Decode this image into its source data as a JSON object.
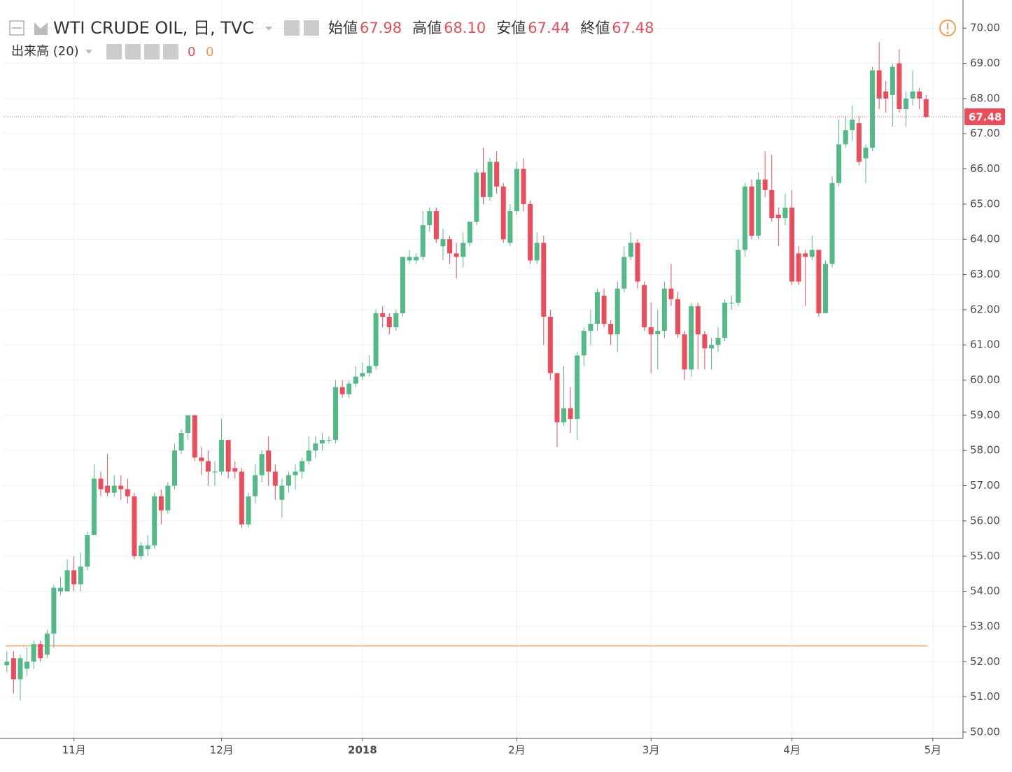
{
  "chart_data": {
    "type": "candlestick",
    "title": "WTI CRUDE OIL, 日, TVC",
    "ohlc_legend": [
      {
        "name": "始値",
        "value": 67.98
      },
      {
        "name": "高値",
        "value": 68.1,
        "label": "68.10"
      },
      {
        "name": "安値",
        "value": 67.44
      },
      {
        "name": "終値",
        "value": 67.48
      }
    ],
    "volume_legend": {
      "name": "出来高 (20)",
      "values": [
        0,
        0
      ],
      "colors": [
        "#e0505e",
        "#f39c4a"
      ]
    },
    "last_price": {
      "value": 67.48
    },
    "up_color": "#53b987",
    "down_color": "#eb4d5c",
    "ylim": [
      49.84,
      70.6
    ],
    "yticks": [
      {
        "value": 50,
        "label": "50.00"
      },
      {
        "value": 51,
        "label": "51.00"
      },
      {
        "value": 52,
        "label": "52.00"
      },
      {
        "value": 53,
        "label": "53.00"
      },
      {
        "value": 54,
        "label": "54.00"
      },
      {
        "value": 55,
        "label": "55.00"
      },
      {
        "value": 56,
        "label": "56.00"
      },
      {
        "value": 57,
        "label": "57.00"
      },
      {
        "value": 58,
        "label": "58.00"
      },
      {
        "value": 59,
        "label": "59.00"
      },
      {
        "value": 60,
        "label": "60.00"
      },
      {
        "value": 61,
        "label": "61.00"
      },
      {
        "value": 62,
        "label": "62.00"
      },
      {
        "value": 63,
        "label": "63.00"
      },
      {
        "value": 64,
        "label": "64.00"
      },
      {
        "value": 65,
        "label": "65.00"
      },
      {
        "value": 66,
        "label": "66.00"
      },
      {
        "value": 67,
        "label": "67.00"
      },
      {
        "value": 68,
        "label": "68.00"
      },
      {
        "value": 69,
        "label": "69.00"
      },
      {
        "value": 70,
        "label": "70.00"
      }
    ],
    "xlim": [
      -0.5,
      142.5
    ],
    "xticks": [
      {
        "value": 10,
        "label": "11月"
      },
      {
        "value": 32,
        "label": "12月"
      },
      {
        "value": 53,
        "label": "2018"
      },
      {
        "value": 76,
        "label": "2月"
      },
      {
        "value": 96,
        "label": "3月"
      },
      {
        "value": 117,
        "label": "4月"
      },
      {
        "value": 138,
        "label": "5月"
      }
    ],
    "grid": true,
    "open": [
      51.9,
      52.1,
      51.5,
      51.8,
      52.0,
      52.5,
      52.2,
      52.8,
      54.0,
      54.0,
      54.6,
      54.2,
      54.7,
      55.6,
      57.2,
      57.0,
      56.8,
      57.0,
      56.9,
      56.7,
      55.0,
      55.2,
      55.3,
      56.7,
      56.3,
      57.0,
      58.0,
      58.5,
      59.0,
      57.8,
      57.7,
      57.4,
      57.4,
      58.3,
      57.5,
      57.4,
      55.9,
      56.7,
      57.3,
      58.0,
      57.4,
      56.6,
      57.0,
      57.3,
      57.4,
      57.7,
      58.0,
      58.2,
      58.3,
      58.3,
      59.8,
      59.6,
      59.9,
      60.1,
      60.2,
      60.4,
      61.9,
      61.8,
      61.5,
      61.9,
      63.4,
      63.4,
      63.5,
      64.4,
      64.8,
      63.8,
      64.0,
      63.6,
      63.5,
      63.9,
      64.5,
      65.9,
      65.2,
      66.2,
      65.5,
      63.9,
      64.8,
      66.0,
      65.0,
      63.4,
      63.9,
      61.8,
      60.2,
      58.8,
      59.2,
      58.9,
      60.7,
      61.4,
      61.6,
      62.4,
      61.6,
      61.3,
      62.6,
      63.5,
      63.9,
      62.7,
      61.5,
      61.3,
      61.4,
      62.6,
      62.3,
      61.3,
      60.3,
      62.1,
      61.3,
      60.9,
      61.0,
      61.2,
      62.2,
      62.2,
      63.7,
      65.5,
      64.1,
      65.7,
      65.4,
      64.7,
      64.6,
      64.9,
      63.6,
      63.6,
      63.5,
      63.7,
      61.9,
      63.3,
      65.6,
      66.7,
      67.1,
      67.3,
      66.3,
      66.6,
      68.8,
      68.2,
      68.1,
      69.0,
      67.7,
      68.0,
      68.2,
      67.98
    ],
    "high": [
      52.3,
      52.3,
      52.2,
      52.4,
      52.6,
      52.6,
      52.9,
      54.2,
      54.4,
      54.9,
      55.0,
      55.1,
      55.7,
      57.6,
      57.4,
      57.9,
      57.3,
      57.3,
      57.2,
      56.8,
      55.4,
      55.6,
      56.8,
      56.9,
      57.1,
      58.2,
      58.6,
      59.0,
      59.0,
      58.1,
      58.0,
      57.7,
      58.9,
      58.3,
      57.7,
      57.5,
      56.8,
      57.6,
      58.0,
      58.4,
      57.6,
      57.2,
      57.4,
      57.6,
      57.8,
      58.4,
      58.4,
      58.5,
      58.4,
      60.0,
      60.0,
      60.0,
      60.4,
      60.5,
      60.7,
      62.0,
      62.1,
      61.9,
      62.0,
      63.5,
      63.7,
      63.6,
      64.8,
      64.9,
      64.9,
      64.3,
      64.1,
      63.9,
      64.2,
      64.5,
      66.0,
      66.6,
      66.3,
      66.5,
      65.6,
      65.0,
      66.2,
      66.3,
      65.1,
      64.2,
      64.1,
      62.0,
      60.2,
      60.4,
      59.8,
      60.8,
      61.5,
      62.0,
      62.6,
      62.6,
      61.7,
      62.8,
      63.8,
      64.2,
      64.0,
      62.8,
      62.2,
      62.0,
      62.8,
      63.3,
      62.5,
      61.4,
      62.2,
      62.2,
      61.4,
      61.2,
      61.5,
      62.3,
      62.4,
      64.0,
      65.6,
      65.7,
      65.9,
      66.5,
      66.4,
      64.9,
      65.3,
      65.4,
      63.8,
      63.7,
      64.1,
      63.7,
      63.4,
      65.8,
      67.4,
      67.5,
      67.8,
      67.5,
      66.7,
      68.9,
      69.6,
      68.5,
      69.0,
      69.4,
      68.2,
      68.8,
      68.3,
      68.1
    ],
    "low": [
      51.7,
      51.1,
      50.9,
      51.6,
      51.8,
      52.0,
      52.1,
      52.4,
      53.9,
      54.0,
      54.0,
      54.0,
      54.6,
      55.6,
      56.7,
      56.7,
      56.7,
      56.6,
      56.5,
      54.9,
      54.9,
      55.0,
      55.2,
      55.9,
      56.2,
      56.9,
      57.9,
      58.3,
      57.7,
      57.3,
      57.0,
      57.0,
      57.3,
      57.2,
      57.2,
      55.8,
      55.8,
      56.5,
      57.1,
      57.0,
      56.6,
      56.1,
      56.8,
      56.9,
      57.2,
      57.6,
      57.8,
      58.0,
      58.2,
      58.2,
      59.5,
      59.5,
      59.8,
      60.0,
      60.1,
      60.3,
      61.5,
      61.3,
      61.4,
      61.8,
      63.3,
      63.3,
      63.4,
      64.2,
      63.9,
      63.4,
      63.3,
      62.9,
      63.2,
      63.8,
      64.4,
      65.0,
      65.1,
      65.3,
      63.9,
      63.8,
      64.7,
      64.8,
      63.3,
      63.3,
      61.0,
      60.0,
      58.1,
      58.7,
      58.5,
      58.3,
      60.4,
      61.0,
      61.4,
      61.5,
      61.0,
      60.8,
      62.5,
      63.4,
      62.6,
      61.4,
      60.2,
      60.3,
      61.2,
      62.1,
      61.2,
      60.0,
      60.1,
      60.3,
      60.3,
      60.3,
      60.8,
      61.1,
      62.0,
      62.1,
      63.5,
      64.0,
      64.0,
      65.2,
      64.5,
      63.8,
      64.4,
      62.7,
      62.7,
      62.1,
      63.4,
      61.8,
      61.9,
      63.2,
      65.5,
      66.6,
      66.8,
      66.1,
      65.6,
      66.5,
      67.7,
      67.6,
      67.2,
      67.6,
      67.2,
      67.8,
      67.7,
      67.44
    ],
    "close": [
      52.0,
      51.5,
      52.1,
      52.0,
      52.5,
      52.1,
      52.8,
      54.1,
      54.1,
      54.6,
      54.2,
      54.7,
      55.6,
      57.2,
      56.9,
      56.8,
      57.0,
      56.9,
      56.7,
      55.0,
      55.3,
      55.3,
      56.7,
      56.3,
      57.0,
      58.0,
      58.5,
      59.0,
      57.8,
      57.7,
      57.4,
      57.4,
      58.3,
      57.4,
      57.4,
      55.9,
      56.7,
      57.3,
      57.9,
      57.4,
      57.0,
      57.0,
      57.3,
      57.4,
      57.7,
      58.0,
      58.2,
      58.3,
      58.3,
      59.8,
      59.6,
      59.9,
      60.1,
      60.2,
      60.4,
      61.9,
      61.8,
      61.5,
      61.9,
      63.5,
      63.5,
      63.5,
      64.4,
      64.8,
      64.0,
      64.0,
      63.6,
      63.5,
      63.9,
      64.5,
      65.9,
      65.2,
      66.2,
      65.5,
      64.0,
      64.8,
      66.0,
      65.0,
      63.4,
      63.9,
      61.8,
      60.2,
      58.8,
      59.2,
      58.9,
      60.7,
      61.4,
      61.6,
      62.5,
      61.6,
      61.3,
      62.6,
      63.5,
      63.9,
      62.8,
      61.5,
      61.3,
      61.4,
      62.6,
      62.3,
      61.3,
      60.3,
      62.1,
      61.3,
      60.9,
      61.0,
      61.2,
      62.2,
      62.2,
      63.7,
      65.5,
      64.1,
      65.7,
      65.4,
      64.6,
      64.6,
      64.9,
      62.8,
      62.8,
      63.5,
      63.7,
      61.9,
      63.3,
      65.6,
      66.7,
      67.1,
      67.4,
      66.2,
      66.6,
      68.8,
      68.0,
      68.0,
      68.9,
      67.7,
      68.0,
      68.2,
      68.0,
      67.48
    ]
  }
}
